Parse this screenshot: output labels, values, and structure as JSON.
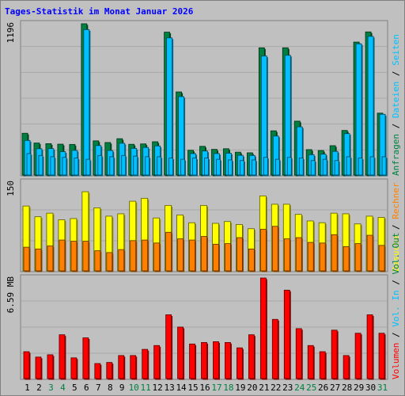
{
  "title": "Tages-Statistik im Monat Januar 2026",
  "colors": {
    "background": "#c0c0c0",
    "border": "#808080",
    "title": "#0000ff",
    "hits": "#008040",
    "files": "#00c0ff",
    "pages": "#00c0ff",
    "visits": "#ffff00",
    "sites": "#ff8000",
    "volume": "#ff0000",
    "weekday_label": "#000000",
    "weekend_label": "#008040"
  },
  "chart_data": [
    {
      "type": "bar",
      "panel": "hits",
      "ymax_label": "1196",
      "ylim": [
        0,
        1196
      ],
      "categories": [
        "1",
        "2",
        "3",
        "4",
        "5",
        "6",
        "7",
        "8",
        "9",
        "10",
        "11",
        "12",
        "13",
        "14",
        "15",
        "16",
        "17",
        "18",
        "19",
        "20",
        "21",
        "22",
        "23",
        "24",
        "25",
        "26",
        "27",
        "28",
        "29",
        "30",
        "31"
      ],
      "weekend": [
        false,
        false,
        true,
        true,
        false,
        false,
        false,
        false,
        false,
        true,
        true,
        false,
        false,
        false,
        false,
        false,
        true,
        true,
        false,
        false,
        false,
        false,
        false,
        true,
        true,
        false,
        false,
        false,
        false,
        false,
        true
      ],
      "legend": [
        {
          "key": "hits",
          "label": "Anfragen"
        },
        {
          "key": "files",
          "label": "Dateien"
        },
        {
          "key": "pages",
          "label": "Seiten"
        }
      ],
      "series": [
        {
          "name": "Anfragen",
          "color_key": "hits",
          "values": [
            335,
            258,
            253,
            249,
            247,
            1196,
            275,
            262,
            292,
            248,
            251,
            268,
            1130,
            660,
            201,
            232,
            208,
            213,
            186,
            181,
            1007,
            354,
            1007,
            430,
            206,
            199,
            237,
            357,
            1052,
            1132,
            493
          ]
        },
        {
          "name": "Dateien",
          "color_key": "files",
          "values": [
            278,
            213,
            214,
            190,
            200,
            1150,
            238,
            199,
            256,
            216,
            223,
            235,
            1085,
            623,
            175,
            195,
            175,
            178,
            161,
            160,
            942,
            313,
            948,
            385,
            166,
            170,
            192,
            332,
            1038,
            1097,
            484
          ]
        },
        {
          "name": "Seiten",
          "color_key": "pages",
          "values": [
            175,
            160,
            150,
            145,
            140,
            130,
            160,
            150,
            160,
            155,
            150,
            150,
            140,
            130,
            140,
            140,
            130,
            125,
            120,
            125,
            145,
            130,
            145,
            140,
            120,
            130,
            120,
            150,
            140,
            150,
            150
          ]
        }
      ]
    },
    {
      "type": "bar",
      "panel": "visits",
      "ymax_label": "150",
      "ylim": [
        0,
        150
      ],
      "legend": [
        {
          "key": "visits",
          "label": "Besuche"
        },
        {
          "key": "sites",
          "label": "Rechner"
        }
      ],
      "series": [
        {
          "name": "Besuche",
          "color_key": "visits",
          "values": [
            110,
            92,
            98,
            87,
            89,
            134,
            107,
            93,
            97,
            118,
            123,
            90,
            111,
            95,
            82,
            111,
            81,
            84,
            79,
            72,
            127,
            113,
            113,
            96,
            85,
            82,
            98,
            97,
            80,
            93,
            91
          ]
        },
        {
          "name": "Rechner",
          "color_key": "sites",
          "values": [
            41,
            38,
            43,
            53,
            51,
            51,
            35,
            32,
            37,
            52,
            53,
            48,
            66,
            55,
            53,
            59,
            46,
            47,
            57,
            38,
            71,
            76,
            55,
            57,
            49,
            48,
            62,
            42,
            47,
            61,
            44
          ]
        }
      ]
    },
    {
      "type": "bar",
      "panel": "volume",
      "ymax_label": "6.59 MB",
      "ylim": [
        0,
        6.59
      ],
      "legend": [
        {
          "key": "volume",
          "label": "Volumen"
        },
        {
          "key": "volume_in",
          "label": "Vol. In"
        },
        {
          "key": "volume_out",
          "label": "Vol. Out"
        }
      ],
      "series": [
        {
          "name": "Volumen",
          "color_key": "volume",
          "values": [
            1.8,
            1.45,
            1.6,
            2.9,
            1.4,
            2.7,
            1.03,
            1.1,
            1.55,
            1.55,
            1.95,
            2.2,
            4.2,
            3.4,
            2.3,
            2.4,
            2.45,
            2.4,
            2.05,
            2.9,
            6.59,
            3.9,
            5.8,
            3.3,
            2.2,
            1.8,
            3.2,
            1.55,
            3.0,
            4.2,
            3.0
          ]
        }
      ]
    }
  ]
}
